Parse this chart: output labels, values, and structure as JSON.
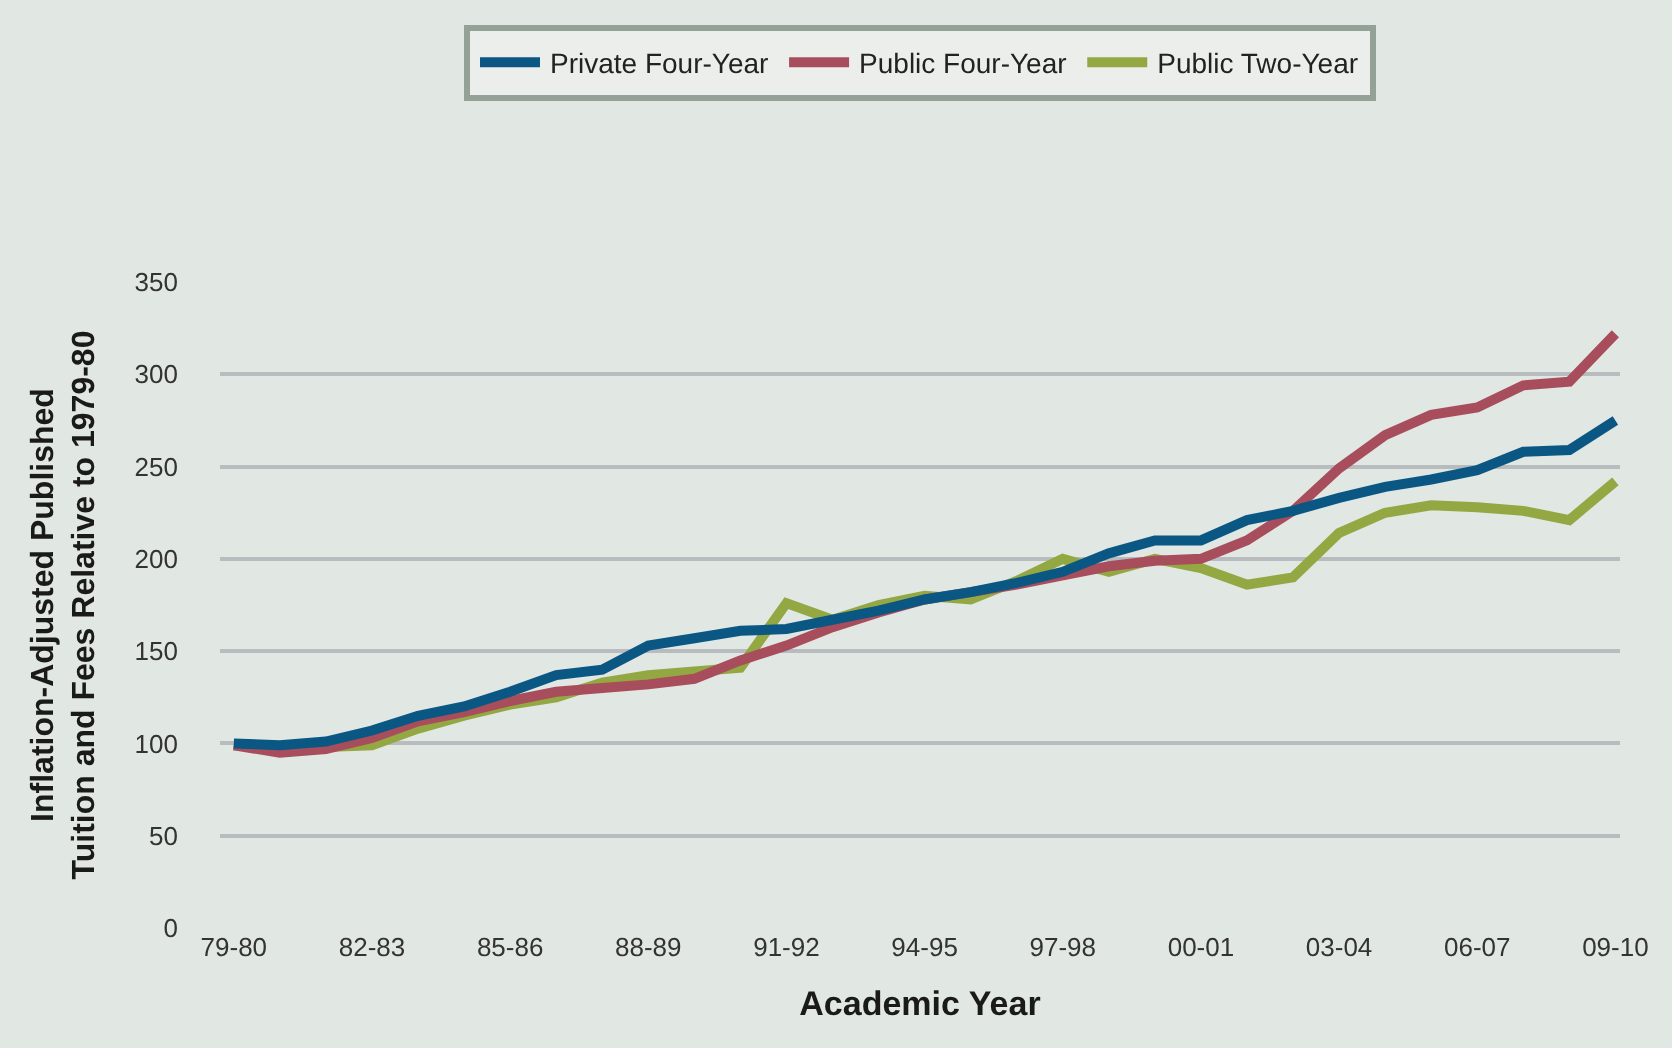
{
  "chart_data": {
    "type": "line",
    "xlabel": "Academic Year",
    "ylabel": "Inflation-Adjusted Published\nTuition and Fees Relative to 1979-80",
    "categories": [
      "79-80",
      null,
      null,
      "82-83",
      null,
      null,
      "85-86",
      null,
      null,
      "88-89",
      null,
      null,
      "91-92",
      null,
      null,
      "94-95",
      null,
      null,
      "97-98",
      null,
      null,
      "00-01",
      null,
      null,
      "03-04",
      null,
      null,
      "06-07",
      null,
      null,
      "09-10"
    ],
    "series": [
      {
        "name": "Private Four-Year",
        "color": "#0b5784",
        "values": [
          100,
          99,
          101,
          107,
          115,
          120,
          128,
          137,
          140,
          153,
          157,
          161,
          162,
          167,
          172,
          178,
          182,
          187,
          193,
          203,
          210,
          210,
          221,
          226,
          233,
          239,
          243,
          248,
          258,
          259,
          275
        ]
      },
      {
        "name": "Public Four-Year",
        "color": "#a84d5c",
        "values": [
          99,
          95,
          97,
          103,
          112,
          117,
          123,
          128,
          130,
          132,
          135,
          145,
          153,
          163,
          171,
          178,
          182,
          186,
          191,
          196,
          199,
          200,
          210,
          226,
          249,
          267,
          278,
          282,
          294,
          296,
          322
        ]
      },
      {
        "name": "Public Two-Year",
        "color": "#93a843",
        "values": [
          99,
          97,
          98,
          99,
          108,
          115,
          121,
          125,
          133,
          137,
          139,
          141,
          176,
          167,
          175,
          180,
          178,
          188,
          200,
          193,
          200,
          195,
          186,
          190,
          214,
          225,
          229,
          228,
          226,
          221,
          242
        ]
      }
    ],
    "ylim": [
      0,
      350
    ],
    "yticks": [
      0,
      50,
      100,
      150,
      200,
      250,
      300,
      350
    ],
    "grid": "y",
    "legend": "top",
    "marker": "none",
    "line_style": "solid"
  }
}
